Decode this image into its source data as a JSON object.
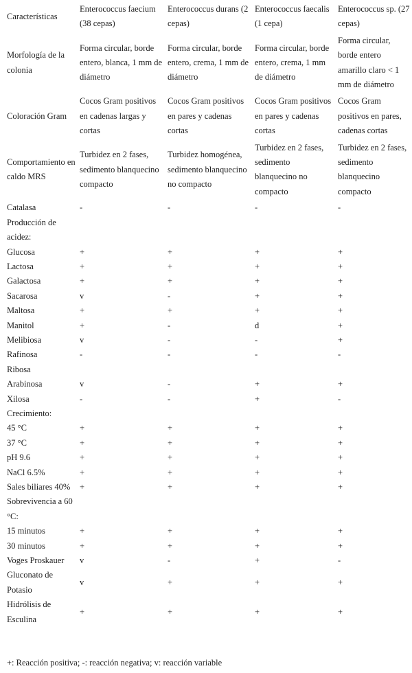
{
  "table": {
    "headers": [
      "Características",
      "Enterococcus faecium (38 cepas)",
      "Enterococcus durans (2 cepas)",
      "Enterococcus faecalis (1 cepa)",
      "Enterococcus sp. (27 cepas)"
    ],
    "rows": [
      [
        "Morfología de la colonia",
        "Forma circular, borde entero, blanca, 1 mm de diámetro",
        "Forma circular, borde entero, crema, 1 mm de diámetro",
        "Forma circular, borde entero, crema, 1 mm de diámetro",
        "Forma circular, borde entero amarillo claro < 1 mm de diámetro"
      ],
      [
        "Coloración Gram",
        "Cocos Gram positivos en cadenas largas y cortas",
        "Cocos Gram positivos en pares y cadenas cortas",
        "Cocos Gram positivos en pares y cadenas cortas",
        "Cocos Gram positivos en pares, cadenas cortas"
      ],
      [
        "Comportamiento en caldo MRS",
        "Turbidez en 2 fases, sedimento blanquecino compacto",
        "Turbidez homogénea, sedimento blanquecino no compacto",
        "Turbidez en 2 fases, sedimento blanquecino no compacto",
        "Turbidez en 2 fases, sedimento blanquecino compacto"
      ],
      [
        "Catalasa",
        "-",
        "-",
        "-",
        "-"
      ],
      [
        "Producción de acidez:",
        "",
        "",
        "",
        ""
      ],
      [
        "Glucosa",
        "+",
        "+",
        "+",
        "+"
      ],
      [
        "Lactosa",
        "+",
        "+",
        "+",
        "+"
      ],
      [
        "Galactosa",
        "+",
        "+",
        "+",
        "+"
      ],
      [
        "Sacarosa",
        "v",
        "-",
        "+",
        "+"
      ],
      [
        "Maltosa",
        "+",
        "+",
        "+",
        "+"
      ],
      [
        "Manitol",
        "+",
        "-",
        "d",
        "+"
      ],
      [
        "Melibiosa",
        "v",
        "-",
        "-",
        "+"
      ],
      [
        "Rafinosa",
        "-",
        "-",
        "-",
        "-"
      ],
      [
        "Ribosa",
        "",
        "",
        "",
        ""
      ],
      [
        "Arabinosa",
        "v",
        "-",
        "+",
        "+"
      ],
      [
        "Xilosa",
        "-",
        "-",
        "+",
        "-"
      ],
      [
        "Crecimiento:",
        "",
        "",
        "",
        ""
      ],
      [
        "45 °C",
        "+",
        "+",
        "+",
        "+"
      ],
      [
        "37 °C",
        "+",
        "+",
        "+",
        "+"
      ],
      [
        "pH 9.6",
        "+",
        "+",
        "+",
        "+"
      ],
      [
        "NaCl 6.5%",
        "+",
        "+",
        "+",
        "+"
      ],
      [
        "Sales biliares 40%",
        "+",
        "+",
        "+",
        "+"
      ],
      [
        "Sobrevivencia a 60 °C:",
        "",
        "",
        "",
        ""
      ],
      [
        "15 minutos",
        "+",
        "+",
        "+",
        "+"
      ],
      [
        "30 minutos",
        "+",
        "+",
        "+",
        "+"
      ],
      [
        "Voges Proskauer",
        "v",
        "-",
        "+",
        "-"
      ],
      [
        "Gluconato de Potasio",
        "v",
        "+",
        "+",
        "+"
      ],
      [
        "Hidrólisis de Esculina",
        "+",
        "+",
        "+",
        "+"
      ]
    ]
  },
  "footnote": "+: Reacción positiva; -: reacción negativa; v: reacción variable"
}
